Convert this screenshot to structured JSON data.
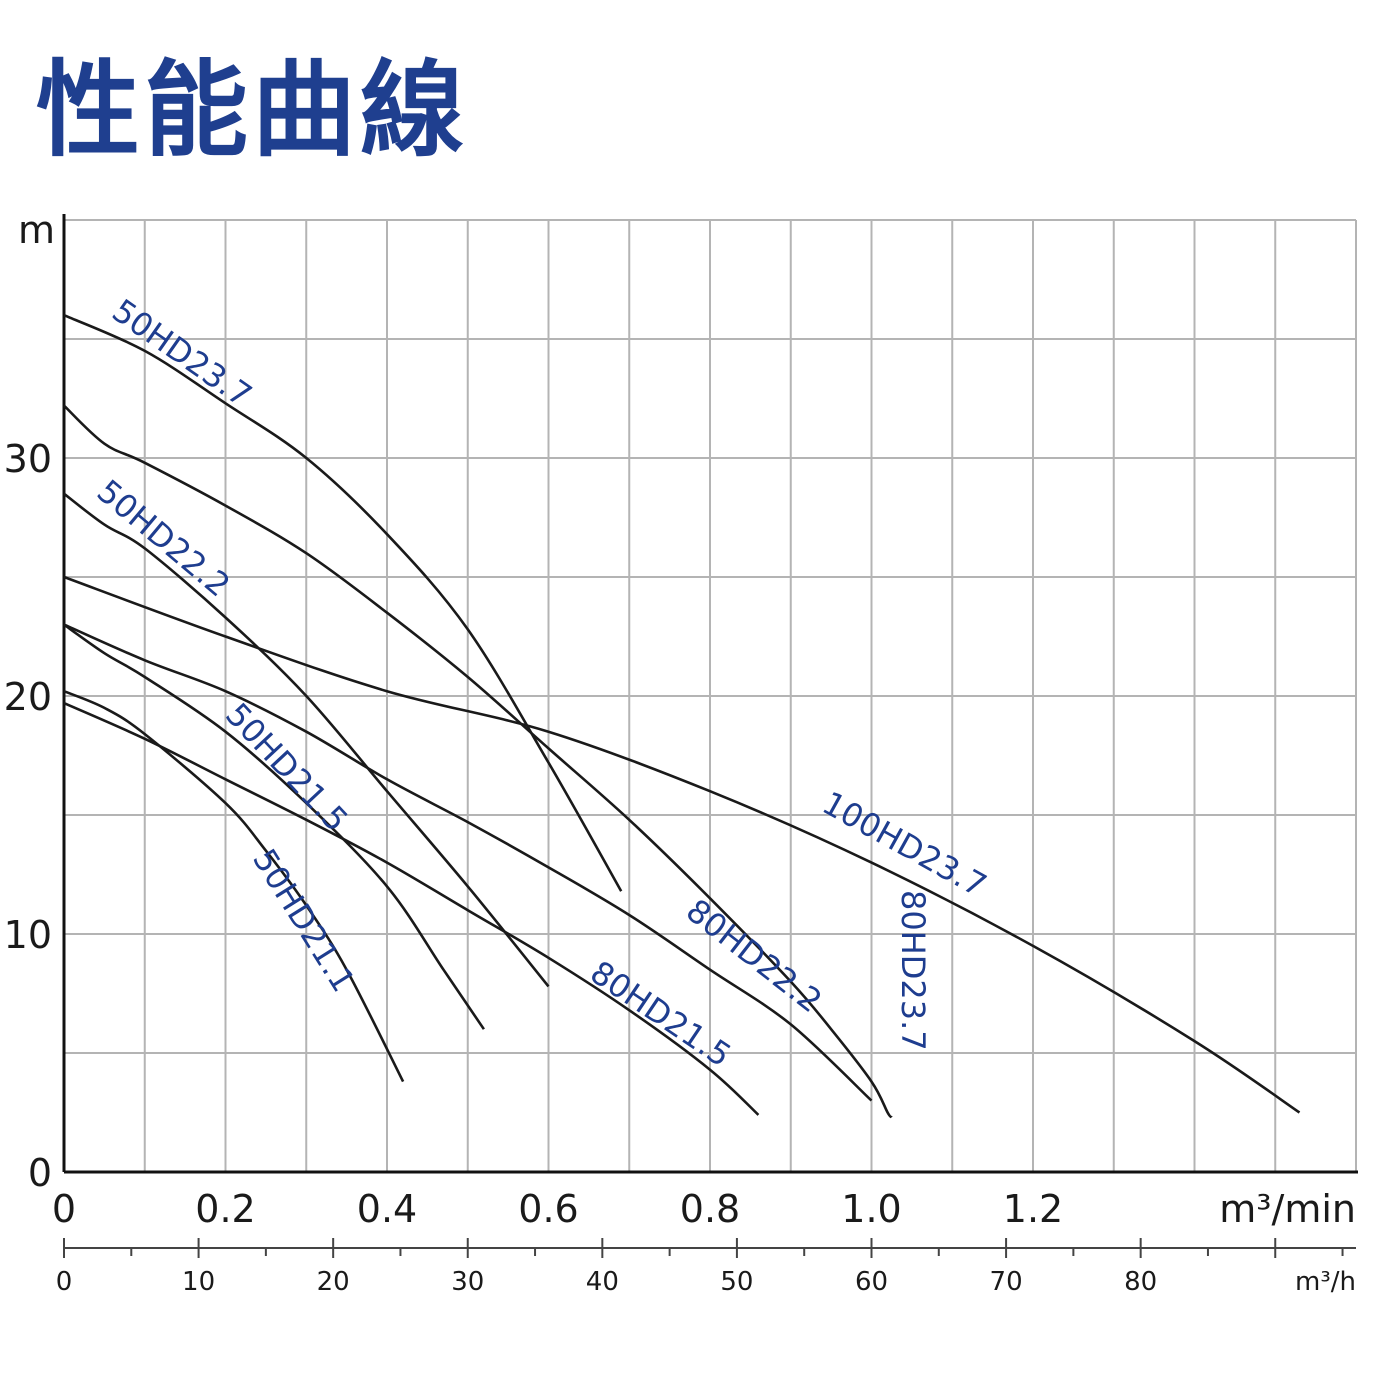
{
  "title": "性能曲線",
  "chart_data": {
    "type": "line",
    "title": "性能曲線",
    "ylabel": "m",
    "xlabel": "m³/min",
    "xlabel_secondary": "m³/h",
    "xlim": [
      0,
      1.6
    ],
    "ylim": [
      0,
      40
    ],
    "grid": true,
    "x_ticks": [
      "0",
      "0.2",
      "0.4",
      "0.6",
      "0.8",
      "1.0",
      "1.2"
    ],
    "x_ticks_secondary": [
      "0",
      "10",
      "20",
      "30",
      "40",
      "50",
      "60",
      "70",
      "80"
    ],
    "y_ticks": [
      "0",
      "10",
      "20",
      "30"
    ],
    "series": [
      {
        "name": "50HD23.7",
        "x": [
          0,
          0.1,
          0.2,
          0.3,
          0.4,
          0.5,
          0.6,
          0.69
        ],
        "y": [
          36,
          34.5,
          32.3,
          30,
          26.8,
          22.8,
          17.2,
          11.8
        ]
      },
      {
        "name": "50HD22.2",
        "x": [
          0,
          0.05,
          0.1,
          0.2,
          0.3,
          0.4,
          0.5,
          0.6
        ],
        "y": [
          28.5,
          27.2,
          26.2,
          23.3,
          20,
          16,
          12,
          7.8
        ]
      },
      {
        "name": "50HD21.5",
        "x": [
          0,
          0.05,
          0.1,
          0.2,
          0.3,
          0.4,
          0.47,
          0.52
        ],
        "y": [
          23,
          21.8,
          20.8,
          18.5,
          15.5,
          12,
          8.5,
          6
        ]
      },
      {
        "name": "50HD21.1",
        "x": [
          0,
          0.05,
          0.1,
          0.2,
          0.25,
          0.3,
          0.35,
          0.42
        ],
        "y": [
          20.2,
          19.5,
          18.4,
          15.5,
          13.5,
          11.2,
          8.5,
          3.8
        ]
      },
      {
        "name": "80HD23.7",
        "x": [
          0,
          0.05,
          0.1,
          0.2,
          0.3,
          0.4,
          0.5,
          0.6,
          0.7,
          0.8,
          0.9,
          0.95,
          1.0,
          1.02,
          1.025
        ],
        "y": [
          32.2,
          30.6,
          29.8,
          28,
          26,
          23.5,
          20.8,
          17.8,
          14.8,
          11.5,
          8,
          6,
          3.8,
          2.5,
          2.3
        ]
      },
      {
        "name": "80HD22.2",
        "x": [
          0,
          0.1,
          0.2,
          0.3,
          0.4,
          0.5,
          0.6,
          0.7,
          0.8,
          0.9,
          1.0
        ],
        "y": [
          23,
          21.5,
          20.2,
          18.5,
          16.5,
          14.7,
          12.8,
          10.8,
          8.5,
          6.2,
          3
        ]
      },
      {
        "name": "80HD21.5",
        "x": [
          0,
          0.1,
          0.2,
          0.3,
          0.4,
          0.5,
          0.6,
          0.7,
          0.8,
          0.86
        ],
        "y": [
          19.7,
          18.2,
          16.5,
          14.8,
          13,
          11,
          9,
          6.8,
          4.3,
          2.4
        ]
      },
      {
        "name": "100HD23.7",
        "x": [
          0,
          0.2,
          0.4,
          0.6,
          0.8,
          1.0,
          1.2,
          1.4,
          1.53
        ],
        "y": [
          25,
          22.5,
          20.2,
          18.5,
          16,
          13,
          9.5,
          5.5,
          2.5
        ]
      }
    ]
  }
}
